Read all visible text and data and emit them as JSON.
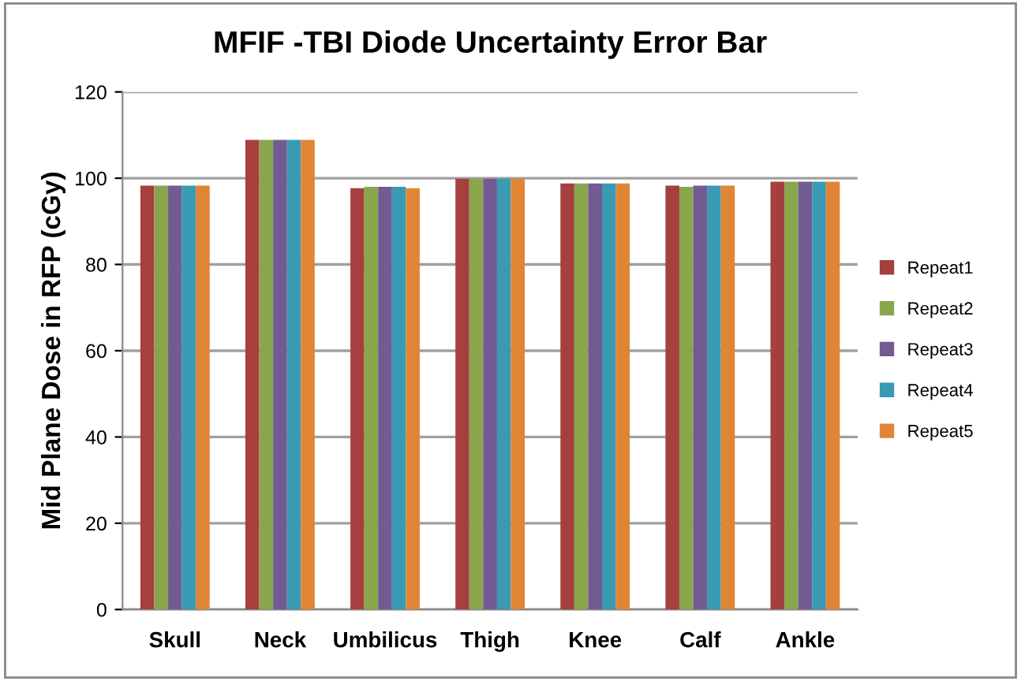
{
  "chart_data": {
    "type": "bar",
    "title": "MFIF -TBI Diode Uncertainty Error Bar",
    "ylabel": "Mid Plane Dose in RFP (cGy)",
    "categories": [
      "Skull",
      "Neck",
      "Umbilicus",
      "Thigh",
      "Knee",
      "Calf",
      "Ankle"
    ],
    "series": [
      {
        "name": "Repeat1",
        "color": "#a5403f",
        "values": [
          98.3,
          108.9,
          97.7,
          99.9,
          98.8,
          98.3,
          99.2
        ]
      },
      {
        "name": "Repeat2",
        "color": "#8aa64b",
        "values": [
          98.3,
          108.9,
          98.0,
          99.9,
          98.8,
          98.0,
          99.2
        ]
      },
      {
        "name": "Repeat3",
        "color": "#725a93",
        "values": [
          98.3,
          108.9,
          98.0,
          99.9,
          98.8,
          98.3,
          99.2
        ]
      },
      {
        "name": "Repeat4",
        "color": "#3a99b3",
        "values": [
          98.3,
          108.9,
          98.0,
          99.9,
          98.8,
          98.3,
          99.2
        ]
      },
      {
        "name": "Repeat5",
        "color": "#e08536",
        "values": [
          98.3,
          108.9,
          97.7,
          99.9,
          98.8,
          98.3,
          99.2
        ]
      }
    ],
    "ylim": [
      0,
      120
    ],
    "yticks": [
      0,
      20,
      40,
      60,
      80,
      100,
      120
    ],
    "grid": "y",
    "legend": "right"
  }
}
